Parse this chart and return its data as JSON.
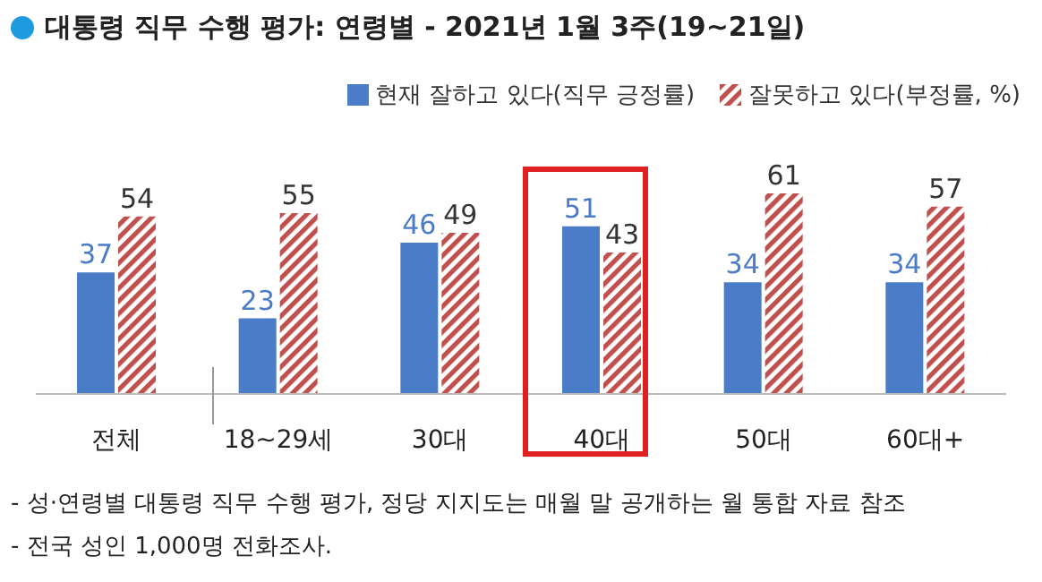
{
  "chart_data": {
    "type": "bar",
    "title": "대통령 직무 수행 평가: 연령별 - 2021년 1월 3주(19~21일)",
    "categories": [
      "전체",
      "18~29세",
      "30대",
      "40대",
      "50대",
      "60대+"
    ],
    "series": [
      {
        "name": "현재 잘하고 있다(직무 긍정률)",
        "color": "#4a7cc7",
        "values": [
          37,
          23,
          46,
          51,
          34,
          34
        ]
      },
      {
        "name": "잘못하고 있다(부정률, %)",
        "color": "#c0504d",
        "values": [
          54,
          55,
          49,
          43,
          61,
          57
        ]
      }
    ],
    "data_labels": true,
    "legend": "top right",
    "grid": false,
    "annotations": [
      "- 성·연령별 대통령 직무 수행 평가, 정당 지지도는 매월 말 공개하는 월 통합 자료 참조",
      "- 전국 성인 1,000명 전화조사."
    ]
  }
}
